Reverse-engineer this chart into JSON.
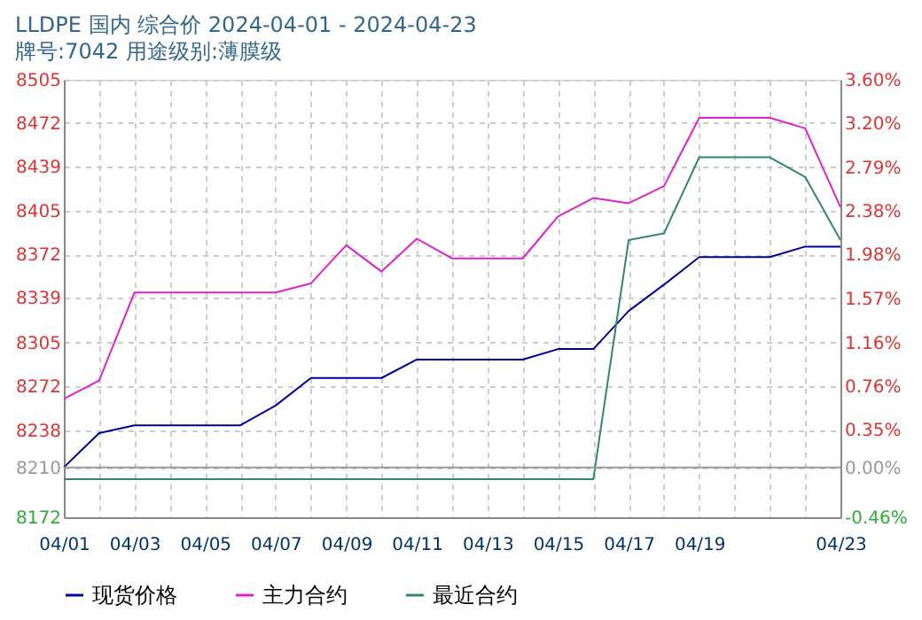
{
  "chart_data": {
    "type": "line",
    "title": "LLDPE 国内 综合价 2024-04-01 - 2024-04-23",
    "subtitle": "牌号:7042 用途级别:薄膜级",
    "categories": [
      "04/01",
      null,
      "04/03",
      null,
      "04/05",
      null,
      "04/07",
      null,
      "04/09",
      null,
      "04/11",
      null,
      "04/13",
      null,
      "04/15",
      null,
      "04/17",
      null,
      "04/19",
      null,
      null,
      null,
      "04/23"
    ],
    "series": [
      {
        "name": "现货价格",
        "color": "#000099",
        "values": [
          8210,
          8236,
          8242,
          8242,
          8242,
          8242,
          8257,
          8278,
          8278,
          8278,
          8292,
          8292,
          8292,
          8292,
          8300,
          8300,
          8329,
          8349,
          8370,
          8370,
          8370,
          8378,
          8378
        ]
      },
      {
        "name": "主力合约",
        "color": "#dd22cc",
        "values": [
          8262,
          8276,
          8343,
          8343,
          8343,
          8343,
          8343,
          8350,
          8379,
          8359,
          8384,
          8369,
          8369,
          8369,
          8401,
          8415,
          8411,
          8424,
          8476,
          8476,
          8476,
          8468,
          8408
        ]
      },
      {
        "name": "最近合约",
        "color": "#338866",
        "values": [
          8201,
          8201,
          8201,
          8201,
          8201,
          8201,
          8201,
          8201,
          8201,
          8201,
          8201,
          8201,
          8201,
          8201,
          8201,
          8201,
          8383,
          8388,
          8446,
          8446,
          8446,
          8431,
          8383
        ]
      }
    ],
    "ylim": [
      8172,
      8505
    ],
    "yticks": [
      8172,
      8210,
      8238,
      8272,
      8305,
      8339,
      8372,
      8405,
      8439,
      8472,
      8505
    ],
    "y2lim": [
      -0.46,
      3.6
    ],
    "y2ticks": [
      {
        "value": -0.46,
        "label": "-0.46%"
      },
      {
        "value": 0,
        "label": "0.00%"
      },
      {
        "value": 0.35,
        "label": "0.35%"
      },
      {
        "value": 0.76,
        "label": "0.76%"
      },
      {
        "value": 1.16,
        "label": "1.16%"
      },
      {
        "value": 1.57,
        "label": "1.57%"
      },
      {
        "value": 1.98,
        "label": "1.98%"
      },
      {
        "value": 2.38,
        "label": "2.38%"
      },
      {
        "value": 2.79,
        "label": "2.79%"
      },
      {
        "value": 3.2,
        "label": "3.20%"
      },
      {
        "value": 3.6,
        "label": "3.60%"
      }
    ],
    "ref_lines": [
      {
        "axis": "y",
        "value": 8210,
        "color": "#999999"
      }
    ],
    "grid": true,
    "legend": "bottom",
    "marker": "none",
    "line_style": "solid"
  }
}
